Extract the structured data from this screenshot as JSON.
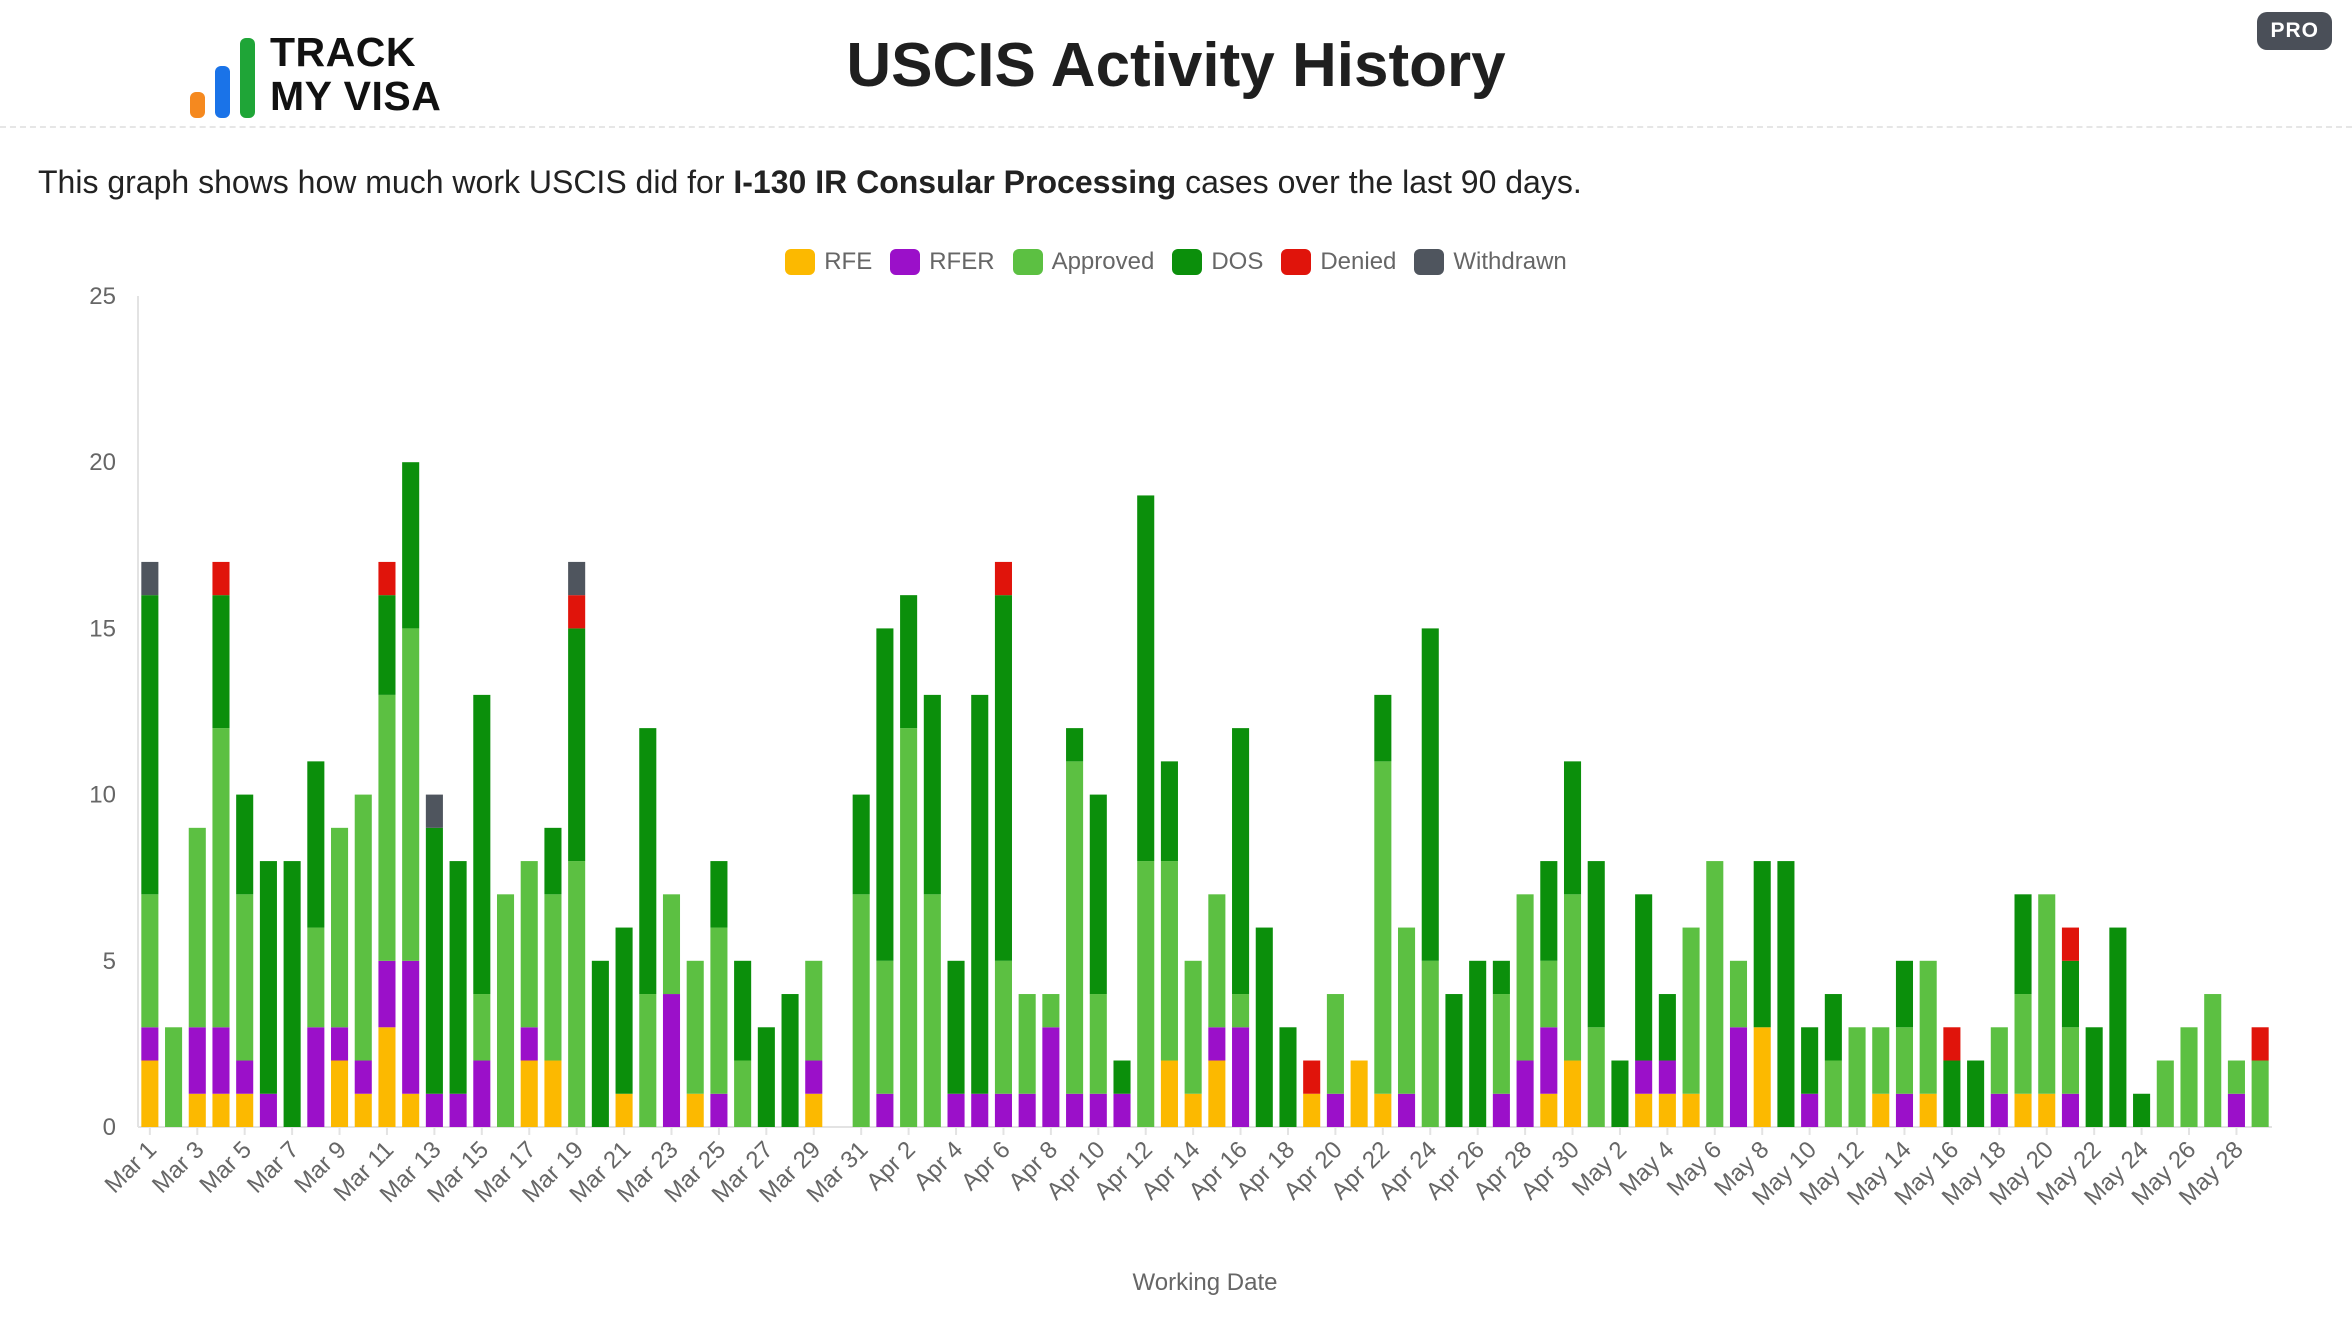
{
  "logo": {
    "text": "TRACK\nMY VISA",
    "colors": [
      "#f5891f",
      "#1a73e8",
      "#1fa537"
    ]
  },
  "title": "USCIS Activity History",
  "pro_badge": "PRO",
  "description": {
    "prefix": "This graph shows how much work USCIS did for ",
    "bold": "I-130 IR Consular Processing",
    "suffix": " cases over the last 90 days."
  },
  "colors": {
    "RFE": "#fcb900",
    "RFER": "#9b10c9",
    "Approved": "#5cc042",
    "DOS": "#0b8f0b",
    "Denied": "#e0140b",
    "Withdrawn": "#4f555e"
  },
  "chart_data": {
    "type": "bar",
    "stacked": true,
    "xlabel": "Working Date",
    "ylabel": "",
    "ylim": [
      0,
      25
    ],
    "yticks": [
      0,
      5,
      10,
      15,
      20,
      25
    ],
    "legend_position": "top-center",
    "grid": false,
    "series_order": [
      "RFE",
      "RFER",
      "Approved",
      "DOS",
      "Denied",
      "Withdrawn"
    ],
    "categories": [
      "Mar 1",
      "Mar 2",
      "Mar 3",
      "Mar 4",
      "Mar 5",
      "Mar 6",
      "Mar 7",
      "Mar 8",
      "Mar 9",
      "Mar 10",
      "Mar 11",
      "Mar 12",
      "Mar 13",
      "Mar 14",
      "Mar 15",
      "Mar 16",
      "Mar 17",
      "Mar 18",
      "Mar 19",
      "Mar 20",
      "Mar 21",
      "Mar 22",
      "Mar 23",
      "Mar 24",
      "Mar 25",
      "Mar 26",
      "Mar 27",
      "Mar 28",
      "Mar 29",
      "Mar 30",
      "Mar 31",
      "Apr 1",
      "Apr 2",
      "Apr 3",
      "Apr 4",
      "Apr 5",
      "Apr 6",
      "Apr 7",
      "Apr 8",
      "Apr 9",
      "Apr 10",
      "Apr 11",
      "Apr 12",
      "Apr 13",
      "Apr 14",
      "Apr 15",
      "Apr 16",
      "Apr 17",
      "Apr 18",
      "Apr 19",
      "Apr 20",
      "Apr 21",
      "Apr 22",
      "Apr 23",
      "Apr 24",
      "Apr 25",
      "Apr 26",
      "Apr 27",
      "Apr 28",
      "Apr 29",
      "Apr 30",
      "May 1",
      "May 2",
      "May 3",
      "May 4",
      "May 5",
      "May 6",
      "May 7",
      "May 8",
      "May 9",
      "May 10",
      "May 11",
      "May 12",
      "May 13",
      "May 14",
      "May 15",
      "May 16",
      "May 17",
      "May 18",
      "May 19",
      "May 20",
      "May 21",
      "May 22",
      "May 23",
      "May 24",
      "May 25",
      "May 26",
      "May 27",
      "May 28",
      "May 29"
    ],
    "tick_labels": [
      "Mar 1",
      "Mar 3",
      "Mar 5",
      "Mar 7",
      "Mar 9",
      "Mar 11",
      "Mar 13",
      "Mar 15",
      "Mar 17",
      "Mar 19",
      "Mar 21",
      "Mar 23",
      "Mar 25",
      "Mar 27",
      "Mar 29",
      "Mar 31",
      "Apr 2",
      "Apr 4",
      "Apr 6",
      "Apr 8",
      "Apr 10",
      "Apr 12",
      "Apr 14",
      "Apr 16",
      "Apr 18",
      "Apr 20",
      "Apr 22",
      "Apr 24",
      "Apr 26",
      "Apr 28",
      "Apr 30",
      "May 2",
      "May 4",
      "May 6",
      "May 8",
      "May 10",
      "May 12",
      "May 14",
      "May 16",
      "May 18",
      "May 20",
      "May 22",
      "May 24",
      "May 26",
      "May 28"
    ],
    "series": [
      {
        "name": "RFE",
        "values": [
          2,
          0,
          1,
          1,
          1,
          0,
          0,
          0,
          2,
          1,
          3,
          1,
          0,
          0,
          0,
          0,
          2,
          2,
          0,
          0,
          1,
          0,
          0,
          1,
          0,
          0,
          0,
          0,
          1,
          0,
          0,
          0,
          0,
          0,
          0,
          0,
          0,
          0,
          0,
          0,
          0,
          0,
          0,
          2,
          1,
          2,
          0,
          0,
          0,
          1,
          0,
          2,
          1,
          0,
          0,
          0,
          0,
          0,
          0,
          1,
          2,
          0,
          0,
          1,
          1,
          1,
          0,
          0,
          3,
          0,
          0,
          0,
          0,
          1,
          0,
          1,
          0,
          0,
          0,
          1,
          1,
          0,
          0,
          0,
          0,
          0,
          0,
          0,
          0,
          0
        ]
      },
      {
        "name": "RFER",
        "values": [
          1,
          0,
          2,
          2,
          1,
          1,
          0,
          3,
          1,
          1,
          2,
          4,
          1,
          1,
          2,
          0,
          1,
          0,
          0,
          0,
          0,
          0,
          4,
          0,
          1,
          0,
          0,
          0,
          1,
          0,
          0,
          1,
          0,
          0,
          1,
          1,
          1,
          1,
          3,
          1,
          1,
          1,
          0,
          0,
          0,
          1,
          3,
          0,
          0,
          0,
          1,
          0,
          0,
          1,
          0,
          0,
          0,
          1,
          2,
          2,
          0,
          0,
          0,
          1,
          1,
          0,
          0,
          3,
          0,
          0,
          1,
          0,
          0,
          0,
          1,
          0,
          0,
          0,
          1,
          0,
          0,
          1,
          0,
          0,
          0,
          0,
          0,
          0,
          1,
          0
        ]
      },
      {
        "name": "Approved",
        "values": [
          4,
          3,
          6,
          9,
          5,
          0,
          0,
          3,
          6,
          8,
          8,
          10,
          0,
          0,
          2,
          7,
          5,
          5,
          8,
          0,
          0,
          4,
          3,
          4,
          5,
          2,
          0,
          0,
          3,
          0,
          7,
          4,
          12,
          7,
          0,
          0,
          4,
          3,
          1,
          10,
          3,
          0,
          8,
          6,
          4,
          4,
          1,
          0,
          0,
          0,
          3,
          0,
          10,
          5,
          5,
          0,
          0,
          3,
          5,
          2,
          5,
          3,
          0,
          0,
          0,
          5,
          8,
          2,
          0,
          0,
          0,
          2,
          3,
          2,
          2,
          4,
          0,
          0,
          2,
          3,
          6,
          2,
          0,
          0,
          0,
          2,
          3,
          4,
          1,
          2
        ]
      },
      {
        "name": "DOS",
        "values": [
          9,
          0,
          0,
          4,
          3,
          7,
          8,
          5,
          0,
          0,
          3,
          5,
          8,
          7,
          9,
          0,
          0,
          2,
          7,
          5,
          5,
          8,
          0,
          0,
          2,
          3,
          3,
          4,
          0,
          0,
          3,
          10,
          4,
          6,
          4,
          12,
          11,
          0,
          0,
          1,
          6,
          1,
          11,
          3,
          0,
          0,
          8,
          6,
          3,
          0,
          0,
          0,
          2,
          0,
          10,
          4,
          5,
          1,
          0,
          3,
          4,
          5,
          2,
          5,
          2,
          0,
          0,
          0,
          5,
          8,
          2,
          2,
          0,
          0,
          2,
          0,
          2,
          2,
          0,
          3,
          0,
          2,
          3,
          6,
          1,
          0,
          0,
          0,
          0,
          0
        ]
      },
      {
        "name": "Denied",
        "values": [
          0,
          0,
          0,
          1,
          0,
          0,
          0,
          0,
          0,
          0,
          1,
          0,
          0,
          0,
          0,
          0,
          0,
          0,
          1,
          0,
          0,
          0,
          0,
          0,
          0,
          0,
          0,
          0,
          0,
          0,
          0,
          0,
          0,
          0,
          0,
          0,
          1,
          0,
          0,
          0,
          0,
          0,
          0,
          0,
          0,
          0,
          0,
          0,
          0,
          1,
          0,
          0,
          0,
          0,
          0,
          0,
          0,
          0,
          0,
          0,
          0,
          0,
          0,
          0,
          0,
          0,
          0,
          0,
          0,
          0,
          0,
          0,
          0,
          0,
          0,
          0,
          1,
          0,
          0,
          0,
          0,
          1,
          0,
          0,
          0,
          0,
          0,
          0,
          0,
          1
        ]
      },
      {
        "name": "Withdrawn",
        "values": [
          1,
          0,
          0,
          0,
          0,
          0,
          0,
          0,
          0,
          0,
          0,
          0,
          1,
          0,
          0,
          0,
          0,
          0,
          1,
          0,
          0,
          0,
          0,
          0,
          0,
          0,
          0,
          0,
          0,
          0,
          0,
          0,
          0,
          0,
          0,
          0,
          0,
          0,
          0,
          0,
          0,
          0,
          0,
          0,
          0,
          0,
          0,
          0,
          0,
          0,
          0,
          0,
          0,
          0,
          0,
          0,
          0,
          0,
          0,
          0,
          0,
          0,
          0,
          0,
          0,
          0,
          0,
          0,
          0,
          0,
          0,
          0,
          0,
          0,
          0,
          0,
          0,
          0,
          0,
          0,
          0,
          0,
          0,
          0,
          0,
          0,
          0,
          0,
          0,
          0
        ]
      }
    ]
  }
}
